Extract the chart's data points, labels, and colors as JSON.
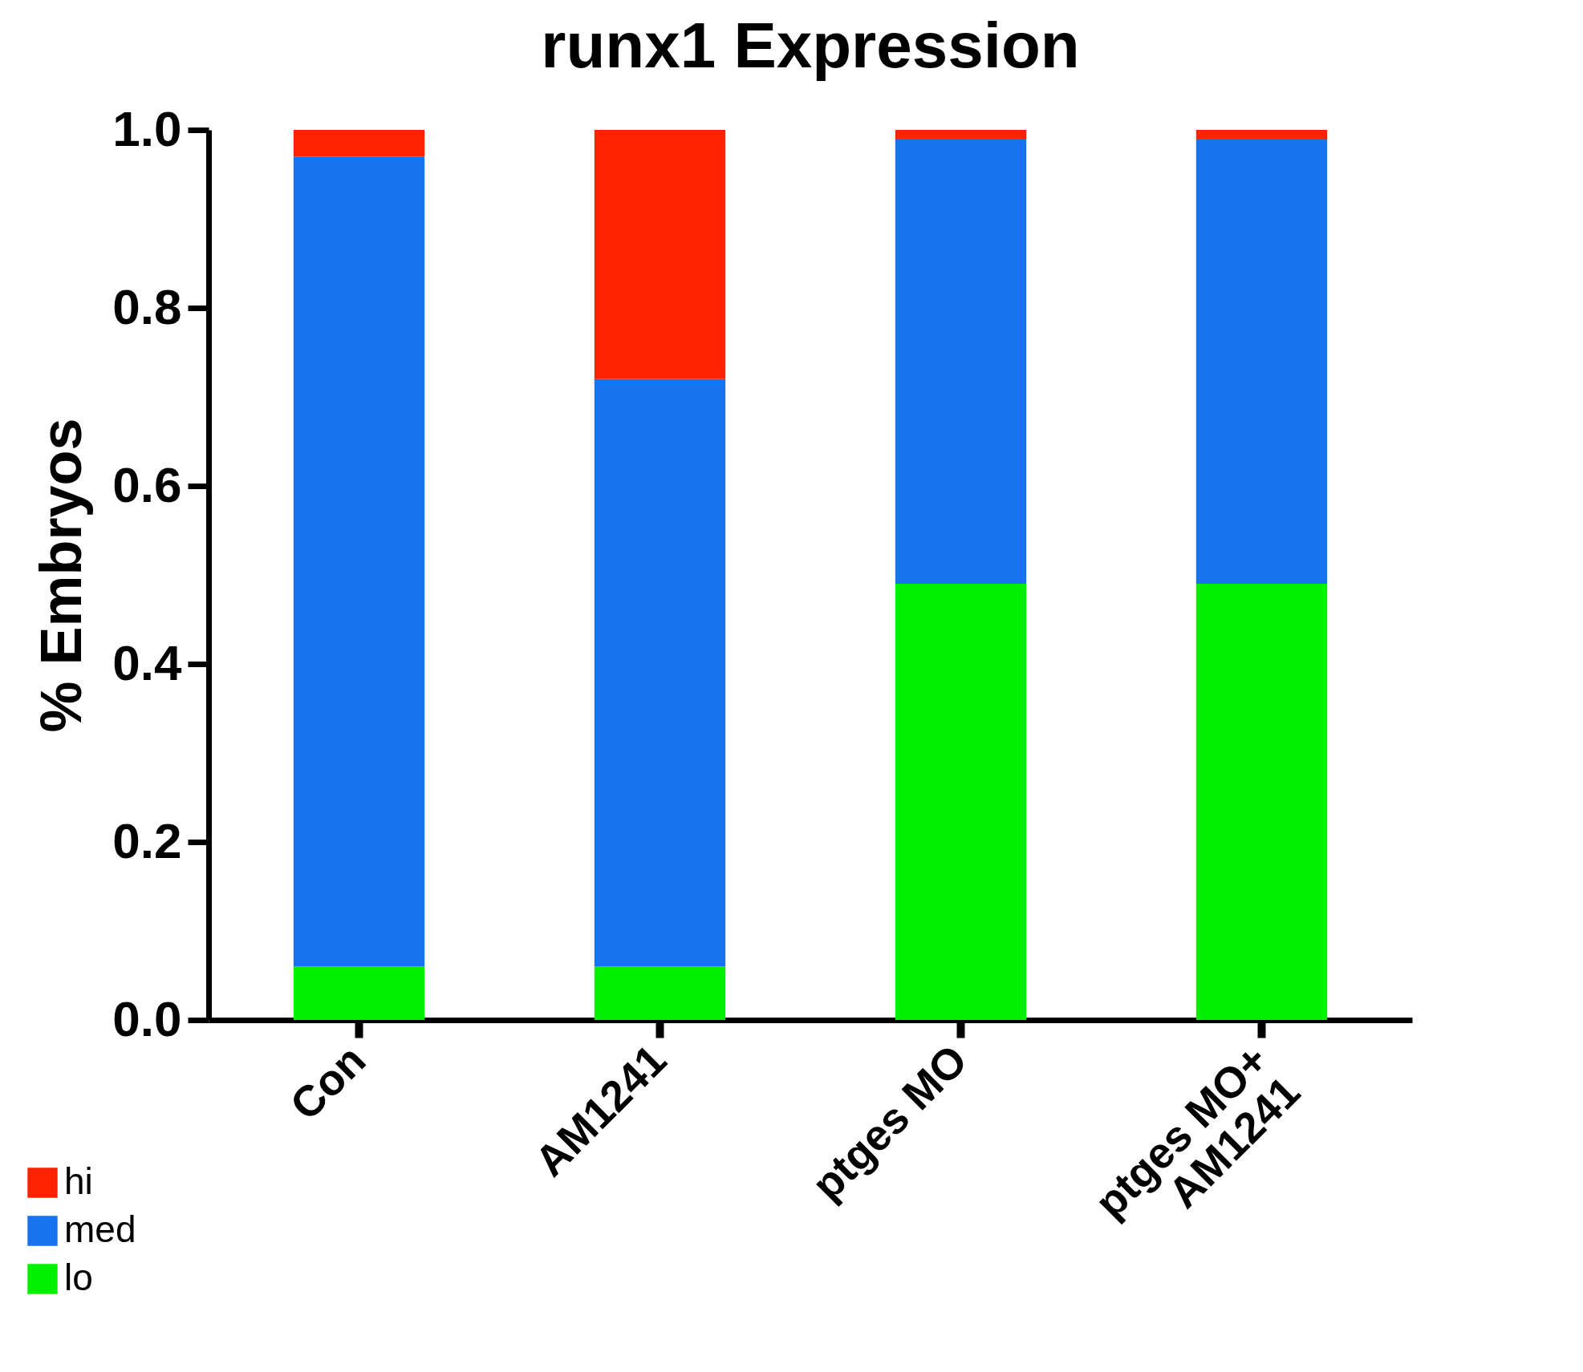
{
  "chart_data": {
    "type": "bar",
    "title": "runx1 Expression",
    "ylabel": "% Embryos",
    "stacked": true,
    "categories": [
      "Con",
      "AM1241",
      "ptges MO",
      "ptges MO+\nAM1241"
    ],
    "series": [
      {
        "name": "lo",
        "color": "#00f000",
        "values": [
          0.06,
          0.06,
          0.49,
          0.49
        ]
      },
      {
        "name": "med",
        "color": "#1874ee",
        "values": [
          0.91,
          0.66,
          0.5,
          0.5
        ]
      },
      {
        "name": "hi",
        "color": "#ff2200",
        "values": [
          0.03,
          0.28,
          0.01,
          0.01
        ]
      }
    ],
    "ylim": [
      0,
      1
    ],
    "yticks": [
      {
        "value": 0,
        "label": "0.0"
      },
      {
        "value": 0.2,
        "label": "0.2"
      },
      {
        "value": 0.4,
        "label": "0.4"
      },
      {
        "value": 0.6,
        "label": "0.6"
      },
      {
        "value": 0.8,
        "label": "0.8"
      },
      {
        "value": 1,
        "label": "1.0"
      }
    ],
    "grid": false,
    "legend": "bottom left"
  }
}
